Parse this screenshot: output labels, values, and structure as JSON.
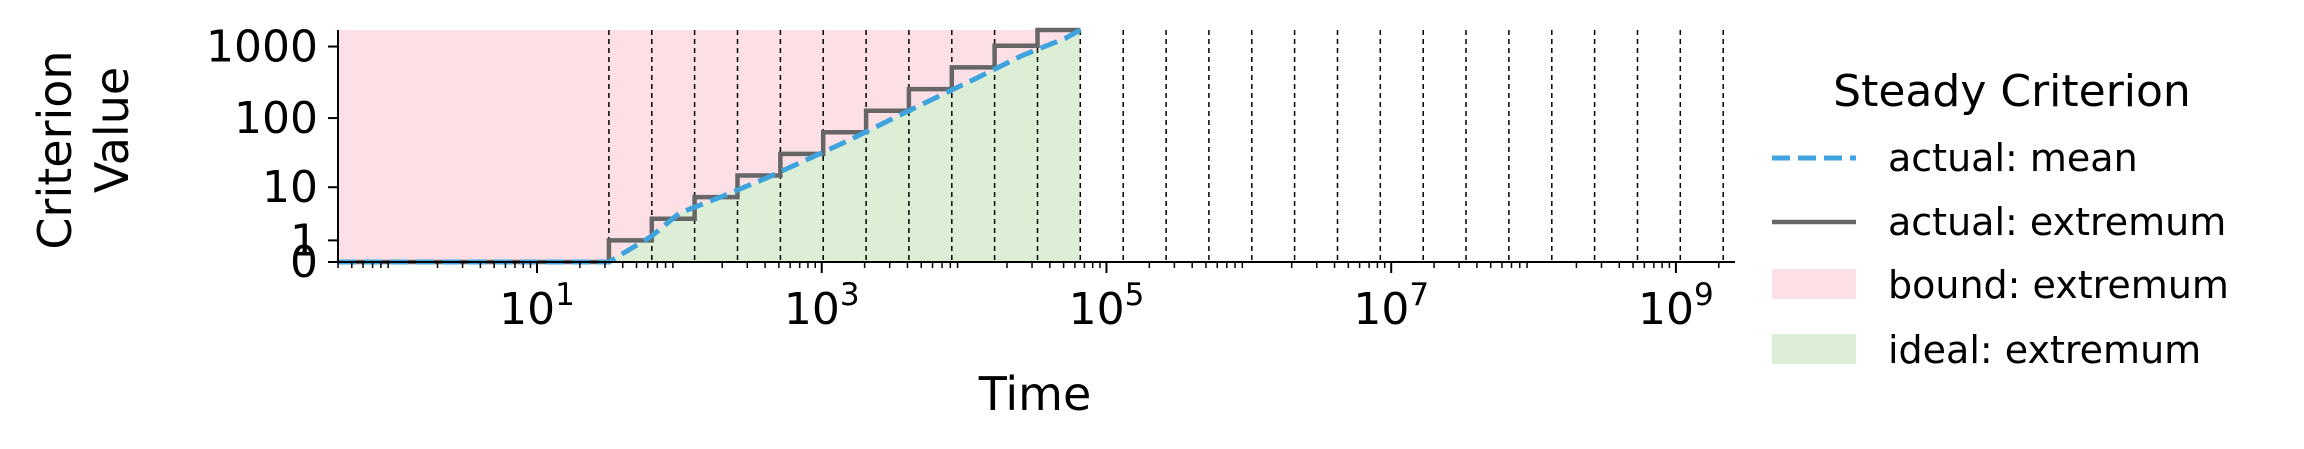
{
  "chart_data": {
    "type": "line",
    "xlabel": "Time",
    "ylabel_lines": [
      "Criterion",
      "Value"
    ],
    "x_scale": "log",
    "y_scale": "symlog",
    "xlim": [
      0.4,
      2600000000
    ],
    "ylim": [
      0,
      1700
    ],
    "x_ticks": [
      {
        "value": 10,
        "base": "10",
        "exp": "1"
      },
      {
        "value": 1000,
        "base": "10",
        "exp": "3"
      },
      {
        "value": 100000,
        "base": "10",
        "exp": "5"
      },
      {
        "value": 10000000,
        "base": "10",
        "exp": "7"
      },
      {
        "value": 1000000000,
        "base": "10",
        "exp": "9"
      }
    ],
    "y_ticks": [
      {
        "value": 0,
        "label": "0"
      },
      {
        "value": 1,
        "label": "1"
      },
      {
        "value": 10,
        "label": "10"
      },
      {
        "value": 100,
        "label": "100"
      },
      {
        "value": 1000,
        "label": "1000"
      }
    ],
    "vlines": [
      32,
      64,
      128,
      256,
      512,
      1024,
      2048,
      4096,
      8192,
      16384,
      32768,
      65536,
      131072,
      262144,
      524288,
      1048576,
      2097152,
      4194304,
      8388608,
      16777216,
      33554432,
      67108864,
      134217728,
      268435456,
      536870912,
      1073741824,
      2147483648
    ],
    "series": [
      {
        "name": "actual: mean",
        "style": "dashed",
        "color": "#3fa4de",
        "x": [
          0.4,
          32,
          64,
          100,
          200,
          400,
          800,
          1600,
          3200,
          6400,
          12800,
          25600,
          51200,
          65536
        ],
        "y": [
          0,
          0,
          1.3,
          3.8,
          7.2,
          13.5,
          26,
          50,
          100,
          195,
          380,
          750,
          1300,
          1700
        ]
      },
      {
        "name": "actual: extremum",
        "style": "solid",
        "color": "#666666",
        "x": [
          0.4,
          32,
          32,
          64,
          64,
          128,
          128,
          256,
          256,
          512,
          512,
          1024,
          1024,
          2048,
          2048,
          4096,
          4096,
          8192,
          8192,
          16384,
          16384,
          32768,
          32768,
          65536
        ],
        "y": [
          0,
          0,
          1,
          1,
          3,
          3,
          7,
          7,
          15,
          15,
          31,
          31,
          63,
          63,
          127,
          127,
          255,
          255,
          511,
          511,
          1023,
          1023,
          1700,
          1700
        ]
      }
    ],
    "bands": [
      {
        "name": "bound: extremum",
        "color": "#fce0e6",
        "x": [
          0.4,
          65536
        ],
        "y_lower": [
          0,
          0
        ],
        "y_upper": [
          1700,
          1700
        ]
      },
      {
        "name": "ideal: extremum",
        "color": "#dcefd6",
        "x": [
          32,
          64,
          100,
          200,
          400,
          800,
          1600,
          3200,
          6400,
          12800,
          25600,
          51200,
          65536
        ],
        "y_lower": [
          0,
          0,
          0,
          0,
          0,
          0,
          0,
          0,
          0,
          0,
          0,
          0,
          0
        ],
        "y_upper": [
          0.05,
          1.3,
          3.8,
          7.2,
          13.5,
          26,
          50,
          100,
          195,
          380,
          750,
          1300,
          1700
        ]
      }
    ],
    "legend": {
      "title": "Steady Criterion",
      "position": "right",
      "entries": [
        {
          "label": "actual: mean",
          "kind": "dashed",
          "color": "#3fa4de"
        },
        {
          "label": "actual: extremum",
          "kind": "solid",
          "color": "#666666"
        },
        {
          "label": "bound: extremum",
          "kind": "patch",
          "color": "#fce0e6"
        },
        {
          "label": "ideal: extremum",
          "kind": "patch",
          "color": "#dcefd6"
        }
      ]
    }
  }
}
